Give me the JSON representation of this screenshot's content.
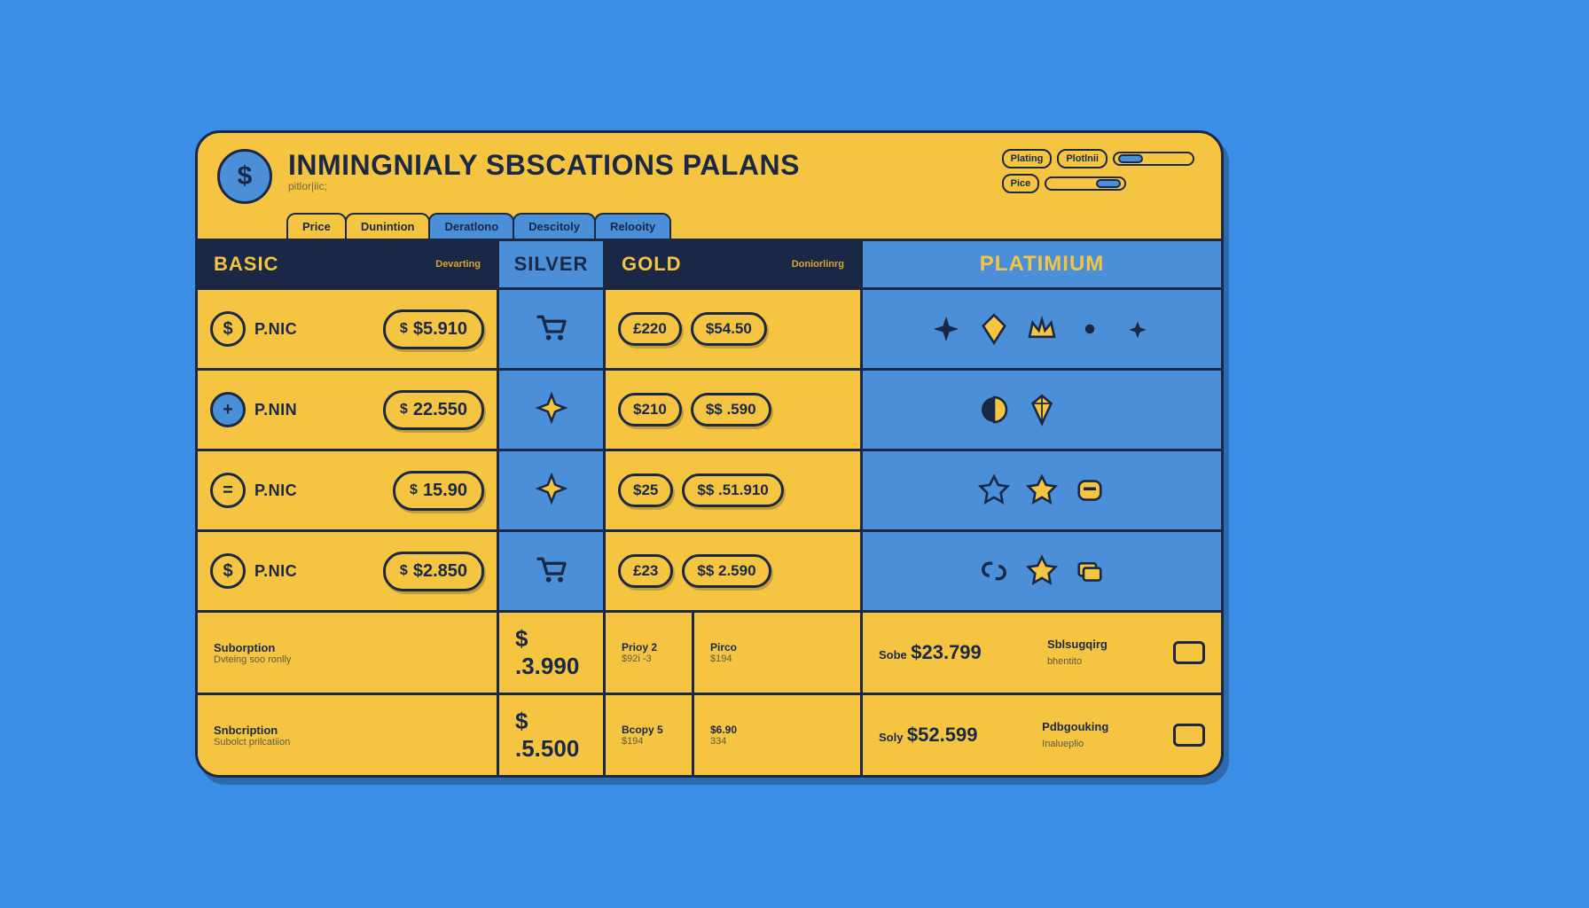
{
  "colors": {
    "page_bg": "#3a8ee6",
    "card_bg": "#f5c542",
    "accent_blue": "#4a8fd8",
    "dark": "#1a2845",
    "stroke": "#1a2845"
  },
  "header": {
    "title": "INMINGNIALY SBSCATIONS PALANS",
    "subtitle": "pitlor|iic;"
  },
  "sliders": [
    {
      "label1": "Plating",
      "label2": "Plotlnii"
    },
    {
      "label1": "Pice"
    }
  ],
  "tabs": [
    "Price",
    "Dunintion",
    "Deratlono",
    "Descitoly",
    "Relooity"
  ],
  "tiers": {
    "basic": {
      "label": "BASIC",
      "sublabel": "Devarting"
    },
    "silver": {
      "label": "SILVER"
    },
    "gold": {
      "label": "GOLD",
      "sublabel": "Doniorlinrg"
    },
    "platinum": {
      "label": "PLATIMIUM"
    }
  },
  "rows": [
    {
      "icon": "coin-icon",
      "glyph": "$",
      "blue": false,
      "label": "P.NIC",
      "basic_price": "$5.910",
      "silver_icon": "cart-icon",
      "gold_a": "£220",
      "gold_b": "$54.50"
    },
    {
      "icon": "plus-icon",
      "glyph": "+",
      "blue": true,
      "label": "P.NIN",
      "basic_price": "22.550",
      "silver_icon": "sparkle-icon",
      "gold_a": "$210",
      "gold_b": "$$ .590"
    },
    {
      "icon": "equal-icon",
      "glyph": "=",
      "blue": false,
      "label": "P.NIC",
      "basic_price": "15.90",
      "silver_icon": "sparkle-icon",
      "gold_a": "$25",
      "gold_b": "$$ .51.910"
    },
    {
      "icon": "dollar-icon",
      "glyph": "$",
      "blue": false,
      "label": "P.NIC",
      "basic_price": "$2.850",
      "silver_icon": "cart-icon",
      "gold_a": "£23",
      "gold_b": "$$  2.590"
    }
  ],
  "platinum_icons": [
    [
      "sparkle",
      "diamond",
      "crown",
      "dot",
      "sparkle-sm"
    ],
    [
      "half-moon",
      "gem",
      "moon"
    ],
    [
      "star-outline",
      "star",
      "badge"
    ],
    [
      "link",
      "star-solid",
      "cards"
    ]
  ],
  "footer": [
    {
      "k1": "Suborption",
      "k2": "Dvteing soo ronlly",
      "basic": "$ .3.990",
      "mid_k1": "Prioy 2",
      "mid_k2": "$92i -3",
      "mid2_k1": "Pirco",
      "mid2_k2": "$194",
      "gold_k": "Sobe",
      "gold_v": "$23.799",
      "plat_k1": "Sblsugqirg",
      "plat_k2": "bhentito"
    },
    {
      "k1": "Snbcription",
      "k2": "Subolct prilcatiion",
      "basic": "$ .5.500",
      "mid_k1": "Bcopy 5",
      "mid_k2": "$194",
      "mid2_k1": "$6.90",
      "mid2_k2": "334",
      "gold_k": "Soly",
      "gold_v": "$52.599",
      "plat_k1": "Pdbgouking",
      "plat_k2": "Inalueplio"
    }
  ]
}
